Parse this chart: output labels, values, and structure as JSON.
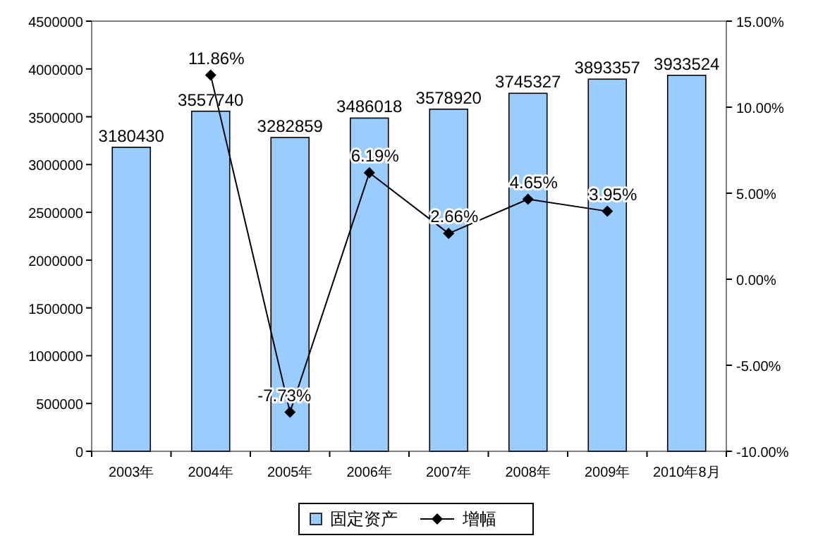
{
  "chart_data": {
    "type": "bar",
    "categories": [
      "2003年",
      "2004年",
      "2005年",
      "2006年",
      "2007年",
      "2008年",
      "2009年",
      "2010年8月"
    ],
    "series": [
      {
        "name": "固定资产",
        "color": "#99ccff",
        "values": [
          3180430,
          3557740,
          3282859,
          3486018,
          3578920,
          3745327,
          3893357,
          3933524
        ]
      },
      {
        "name": "增幅",
        "type": "line",
        "axis": "y2",
        "color": "#000000",
        "marker": "diamond",
        "values": [
          null,
          11.86,
          -7.73,
          6.19,
          2.66,
          4.65,
          3.95,
          null
        ],
        "value_labels": [
          null,
          "11.86%",
          "-7.73%",
          "6.19%",
          "2.66%",
          "4.65%",
          "3.95%",
          null
        ]
      }
    ],
    "ylim": [
      0,
      4500000
    ],
    "yticks": [
      0,
      500000,
      1000000,
      1500000,
      2000000,
      2500000,
      3000000,
      3500000,
      4000000,
      4500000
    ],
    "y2lim": [
      -10,
      15
    ],
    "y2ticks": [
      {
        "value": -10,
        "label": "-10.00%"
      },
      {
        "value": -5,
        "label": "-5.00%"
      },
      {
        "value": 0,
        "label": "0.00%"
      },
      {
        "value": 5,
        "label": "5.00%"
      },
      {
        "value": 10,
        "label": "10.00%"
      },
      {
        "value": 15,
        "label": "15.00%"
      }
    ],
    "data_labels": true,
    "legend": "bottom",
    "grid": false
  }
}
